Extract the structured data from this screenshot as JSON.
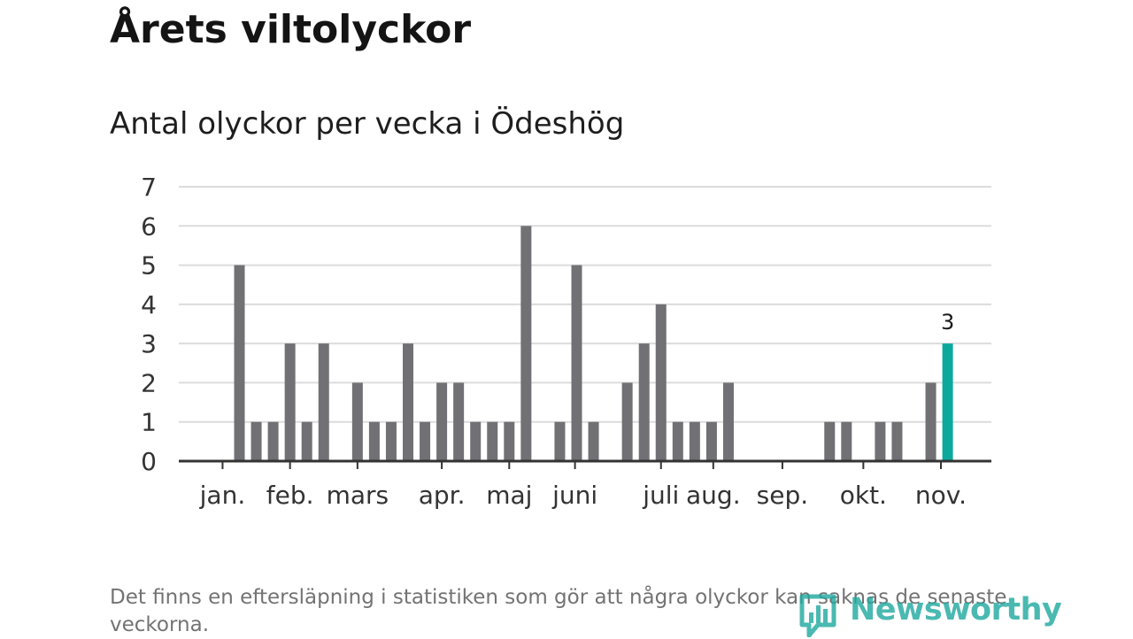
{
  "title": "Årets viltolyckor",
  "subtitle": "Antal olyckor per vecka i Ödeshög",
  "footnote": "Det finns en eftersläpning i statistiken som gör att några olyckor kan saknas de senaste veckorna.",
  "brand": {
    "name": "Newsworthy",
    "color": "#1ea89e"
  },
  "colors": {
    "bar": "#707075",
    "highlight": "#0ca89e",
    "grid": "#dcdcdc",
    "axis": "#333333"
  },
  "chart_data": {
    "type": "bar",
    "title": "Antal olyckor per vecka i Ödeshög",
    "xlabel": "",
    "ylabel": "",
    "ylim": [
      0,
      7
    ],
    "y_ticks": [
      "0",
      "1",
      "2",
      "3",
      "4",
      "5",
      "6",
      "7"
    ],
    "weeks": [
      1,
      2,
      3,
      4,
      5,
      6,
      7,
      8,
      9,
      10,
      11,
      12,
      13,
      14,
      15,
      16,
      17,
      18,
      19,
      20,
      21,
      22,
      23,
      24,
      25,
      26,
      27,
      28,
      29,
      30,
      31,
      32,
      33,
      34,
      35,
      36,
      37,
      38,
      39,
      40,
      41,
      42,
      43,
      44,
      45,
      46
    ],
    "values": [
      0,
      0,
      0,
      5,
      1,
      1,
      3,
      1,
      3,
      0,
      2,
      1,
      1,
      3,
      1,
      2,
      2,
      1,
      1,
      1,
      6,
      0,
      1,
      5,
      1,
      0,
      2,
      3,
      4,
      1,
      1,
      1,
      2,
      0,
      0,
      0,
      0,
      0,
      1,
      1,
      0,
      1,
      1,
      0,
      2,
      3
    ],
    "highlight_index": 45,
    "highlight_label": "3",
    "month_labels": [
      {
        "label": "jan.",
        "week": 3
      },
      {
        "label": "feb.",
        "week": 7
      },
      {
        "label": "mars",
        "week": 11
      },
      {
        "label": "apr.",
        "week": 16
      },
      {
        "label": "maj",
        "week": 20
      },
      {
        "label": "juni",
        "week": 23.9
      },
      {
        "label": "juli",
        "week": 29
      },
      {
        "label": "aug.",
        "week": 32.1
      },
      {
        "label": "sep.",
        "week": 36.2
      },
      {
        "label": "okt.",
        "week": 41
      },
      {
        "label": "nov.",
        "week": 45.6
      }
    ],
    "month_ticks": [
      3,
      7,
      11,
      16,
      20,
      23.9,
      29,
      32.1,
      36.2,
      41,
      45.6
    ]
  }
}
